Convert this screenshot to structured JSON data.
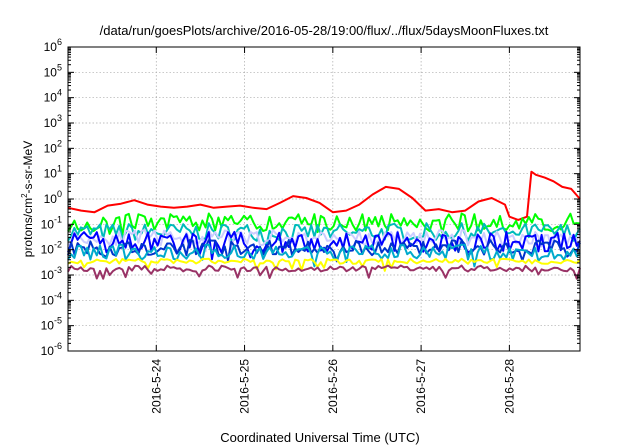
{
  "chart_data": {
    "type": "line",
    "title": "/data/run/goesPlots/archive/2016-05-28/19:00/flux/../flux/5daysMoonFluxes.txt",
    "xlabel": "Coordinated Universal Time (UTC)",
    "ylabel": {
      "pre": "protons/cm",
      "sup": "2",
      "post": "-s-sr-MeV"
    },
    "yscale": "log",
    "ylim": [
      1e-06,
      1000000.0
    ],
    "xlim": [
      0,
      5.8
    ],
    "grid": true,
    "legend": "none",
    "x_ticks": [
      {
        "x": 1,
        "label": "2016-5-24"
      },
      {
        "x": 2,
        "label": "2016-5-25"
      },
      {
        "x": 3,
        "label": "2016-5-26"
      },
      {
        "x": 4,
        "label": "2016-5-27"
      },
      {
        "x": 5,
        "label": "2016-5-28"
      }
    ],
    "y_ticks": [
      {
        "value": 1e-06,
        "exp": "-6"
      },
      {
        "value": 1e-05,
        "exp": "-5"
      },
      {
        "value": 0.0001,
        "exp": "-4"
      },
      {
        "value": 0.001,
        "exp": "-3"
      },
      {
        "value": 0.01,
        "exp": "-2"
      },
      {
        "value": 0.1,
        "exp": "-1"
      },
      {
        "value": 1,
        "exp": "0"
      },
      {
        "value": 10,
        "exp": "1"
      },
      {
        "value": 100,
        "exp": "2"
      },
      {
        "value": 1000.0,
        "exp": "3"
      },
      {
        "value": 10000.0,
        "exp": "4"
      },
      {
        "value": 100000.0,
        "exp": "5"
      },
      {
        "value": 1000000.0,
        "exp": "6"
      }
    ],
    "series": [
      {
        "color": "#ff0000",
        "x": [
          0,
          0.15,
          0.3,
          0.45,
          0.6,
          0.75,
          0.9,
          1.05,
          1.2,
          1.35,
          1.5,
          1.65,
          1.8,
          1.95,
          2.1,
          2.25,
          2.4,
          2.55,
          2.7,
          2.85,
          3.0,
          3.15,
          3.3,
          3.45,
          3.6,
          3.75,
          3.9,
          4.05,
          4.2,
          4.35,
          4.5,
          4.65,
          4.8,
          4.95,
          5.0,
          5.1,
          5.2,
          5.25,
          5.3,
          5.4,
          5.5,
          5.6,
          5.7,
          5.8
        ],
        "y": [
          0.45,
          0.35,
          0.3,
          0.55,
          0.65,
          0.9,
          0.6,
          0.5,
          0.45,
          0.5,
          0.6,
          0.45,
          0.5,
          0.55,
          0.45,
          0.4,
          0.7,
          1.3,
          1.1,
          0.7,
          0.3,
          0.35,
          0.6,
          1.5,
          3.0,
          2.5,
          1.1,
          0.35,
          0.4,
          0.3,
          0.35,
          0.8,
          1.1,
          0.6,
          0.2,
          0.15,
          0.2,
          12,
          9,
          7,
          5,
          3,
          2.5,
          1.0
        ]
      },
      {
        "color": "#00ff00",
        "base": 0.12,
        "amp": 0.35,
        "seed": 3
      },
      {
        "color": "#00bbbb",
        "base": 0.05,
        "amp": 0.35,
        "seed": 7
      },
      {
        "color": "#ccccff",
        "base": 0.03,
        "amp": 0.3,
        "seed": 11
      },
      {
        "color": "#0000ff",
        "base": 0.02,
        "amp": 0.4,
        "seed": 13
      },
      {
        "color": "#0033cc",
        "base": 0.012,
        "amp": 0.3,
        "seed": 17
      },
      {
        "color": "#00aacc",
        "base": 0.008,
        "amp": 0.3,
        "seed": 19
      },
      {
        "color": "#ffff00",
        "base": 0.0035,
        "amp": 0.1,
        "seed": 23
      },
      {
        "color": "#993366",
        "base": 0.0018,
        "amp": 0.12,
        "seed": 29
      }
    ]
  }
}
